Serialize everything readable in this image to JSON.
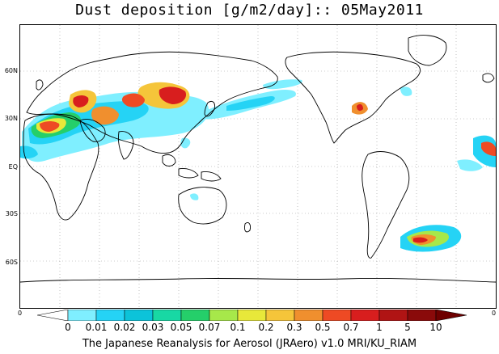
{
  "title": "Dust deposition [g/m2/day]:: 05May2011",
  "map": {
    "lat_labels": [
      "60N",
      "30N",
      "EQ",
      "30S",
      "60S"
    ],
    "lon_tick_left": "0",
    "lon_tick_right": "0"
  },
  "colorbar": {
    "labels": [
      "0",
      "0.01",
      "0.02",
      "0.03",
      "0.05",
      "0.07",
      "0.1",
      "0.2",
      "0.3",
      "0.5",
      "0.7",
      "1",
      "5",
      "10"
    ],
    "colors": [
      "#ffffff",
      "#7fefff",
      "#25d3f5",
      "#0cc3d9",
      "#18d8a4",
      "#25cf6a",
      "#a7e84a",
      "#e8e83a",
      "#f5c53a",
      "#f08f2e",
      "#ee4a24",
      "#d81e1e",
      "#b01414",
      "#8a0a0a"
    ],
    "overflow_color": "#6e0000"
  },
  "footer": "The Japanese Reanalysis for Aerosol (JRAero) v1.0 MRI/KU_RIAM"
}
